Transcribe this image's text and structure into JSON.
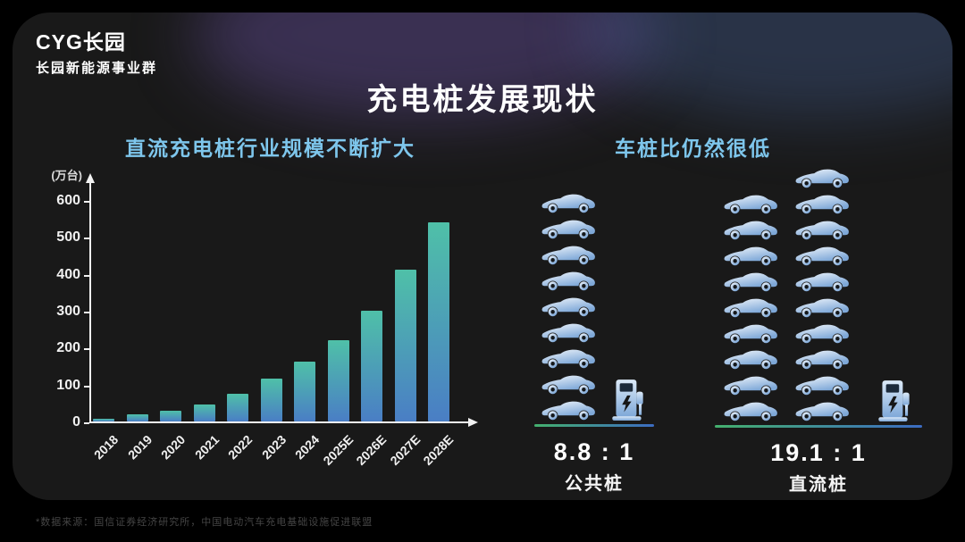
{
  "colors": {
    "page_bg": "#000000",
    "slide_bg": "#191919",
    "accent_blue": "#7ec6ec",
    "bar_top": "#4fc0a8",
    "bar_bottom": "#4a7ec5",
    "underline_green": "#44b06e",
    "underline_blue": "#3c6cc2",
    "car_light": "#f2f7fc",
    "car_dark": "#7ea8d8"
  },
  "logo": {
    "brand": "CYG长园",
    "division": "长园新能源事业群"
  },
  "title": "充电桩发展现状",
  "chart_data": {
    "type": "bar",
    "title": "直流充电桩行业规模不断扩大",
    "unit_label": "(万台)",
    "categories": [
      "2018",
      "2019",
      "2020",
      "2021",
      "2022",
      "2023",
      "2024",
      "2025E",
      "2026E",
      "2027E",
      "2028E"
    ],
    "values": [
      8,
      20,
      28,
      47,
      75,
      115,
      162,
      220,
      300,
      412,
      540
    ],
    "xlabel": "",
    "ylabel": "万台",
    "ylim": [
      0,
      600
    ],
    "yticks": [
      0,
      100,
      200,
      300,
      400,
      500,
      600
    ],
    "grid": false,
    "legend_position": "none"
  },
  "pictograph": {
    "title": "车桩比仍然很低",
    "groups": [
      {
        "ratio": "8.8 : 1",
        "label": "公共桩",
        "car_count": 9,
        "columns": [
          9
        ]
      },
      {
        "ratio": "19.1 : 1",
        "label": "直流桩",
        "car_count": 19,
        "columns": [
          9,
          10
        ]
      }
    ]
  },
  "footnote": "*数据来源：国信证券经济研究所，中国电动汽车充电基础设施促进联盟"
}
